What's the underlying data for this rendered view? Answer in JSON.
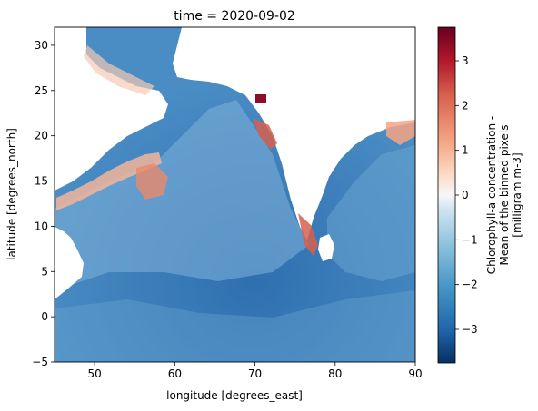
{
  "chart_data": {
    "type": "heatmap",
    "title": "time = 2020-09-02",
    "xlabel": "longitude [degrees_east]",
    "ylabel": "latitude [degrees_north]",
    "xlim": [
      45,
      90
    ],
    "ylim": [
      -5,
      32
    ],
    "xticks": [
      50,
      60,
      70,
      80,
      90
    ],
    "yticks": [
      -5,
      0,
      5,
      10,
      15,
      20,
      25,
      30
    ],
    "colorbar": {
      "label_lines": [
        "Chlorophyll-a concentration -",
        "Mean of the binned pixels",
        "[milligram m-3]"
      ],
      "range": [
        -3.75,
        3.75
      ],
      "ticks": [
        -3,
        -2,
        -1,
        0,
        1,
        2,
        3
      ],
      "colormap": "RdBu_r"
    },
    "grid": false,
    "land_mask_color": "#ffffff"
  }
}
